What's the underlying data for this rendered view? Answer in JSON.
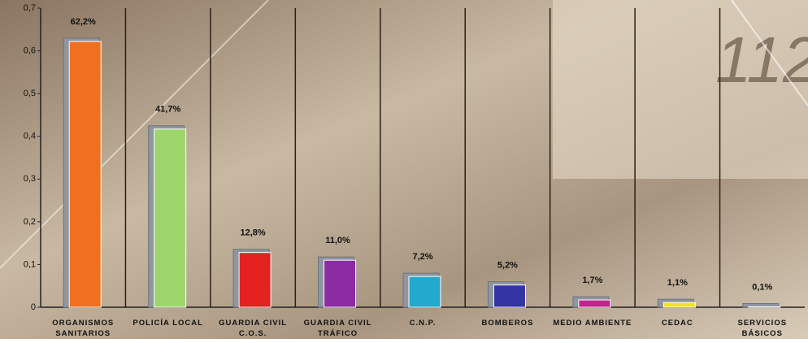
{
  "chart_data": {
    "type": "bar",
    "categories": [
      "ORGANISMOS\nSANITARIOS",
      "POLICÍA LOCAL",
      "GUARDIA CIVIL\nC.O.S.",
      "GUARDIA CIVIL\nTRÁFICO",
      "C.N.P.",
      "BOMBEROS",
      "MEDIO AMBIENTE",
      "CEDAC",
      "SERVICIOS\nBÁSICOS"
    ],
    "values": [
      0.622,
      0.417,
      0.128,
      0.11,
      0.072,
      0.052,
      0.017,
      0.011,
      0.001
    ],
    "value_labels": [
      "62,2%",
      "41,7%",
      "12,8%",
      "11,0%",
      "7,2%",
      "5,2%",
      "1,7%",
      "1,1%",
      "0,1%"
    ],
    "colors": [
      "#f07020",
      "#9ed66c",
      "#e42222",
      "#8c2ca2",
      "#22aacc",
      "#3434a4",
      "#c4228c",
      "#f2e222",
      "#841414"
    ],
    "ylim": [
      0,
      0.7
    ],
    "yticks": [
      0,
      {
        "value": 0.1,
        "label": "0,1"
      },
      {
        "value": 0.2,
        "label": "0,2"
      },
      {
        "value": 0.3,
        "label": "0,3"
      },
      {
        "value": 0.4,
        "label": "0,4"
      },
      {
        "value": 0.5,
        "label": "0,5"
      },
      {
        "value": 0.6,
        "label": "0,6"
      },
      {
        "value": 0.7,
        "label": "0,7"
      }
    ],
    "grid": true
  }
}
